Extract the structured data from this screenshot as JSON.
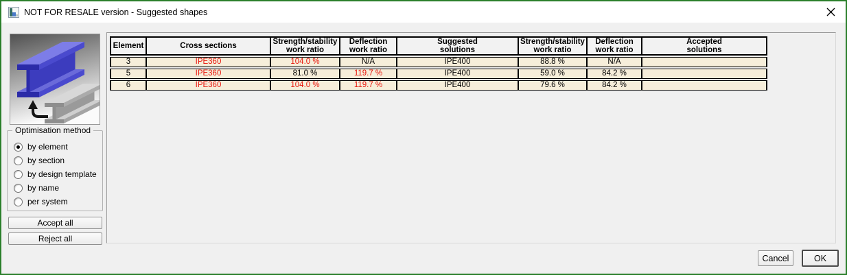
{
  "window": {
    "title": "NOT FOR RESALE version - Suggested shapes"
  },
  "colors": {
    "window_border": "#2b7f2b",
    "dialog_background": "#f0f0f0",
    "row_background": "#f6eeda",
    "alert_red": "#e81309"
  },
  "optimisation": {
    "group_label": "Optimisation method",
    "options": [
      {
        "label": "by element",
        "selected": true
      },
      {
        "label": "by section",
        "selected": false
      },
      {
        "label": "by design template",
        "selected": false
      },
      {
        "label": "by name",
        "selected": false
      },
      {
        "label": "per system",
        "selected": false
      }
    ]
  },
  "actions": {
    "accept_all": "Accept all",
    "reject_all": "Reject all",
    "cancel": "Cancel",
    "ok": "OK"
  },
  "table": {
    "columns": [
      {
        "label": "Element"
      },
      {
        "label": "Cross sections"
      },
      {
        "label": "Strength/stability\nwork ratio"
      },
      {
        "label": "Deflection\nwork ratio"
      },
      {
        "label": "Suggested\nsolutions"
      },
      {
        "label": "Strength/stability\nwork ratio"
      },
      {
        "label": "Deflection\nwork ratio"
      },
      {
        "label": "Accepted\nsolutions"
      }
    ],
    "rows": [
      {
        "cells": [
          {
            "t": "3"
          },
          {
            "t": "IPE360",
            "red": true
          },
          {
            "t": "104.0 %",
            "red": true
          },
          {
            "t": "N/A"
          },
          {
            "t": "IPE400"
          },
          {
            "t": "88.8 %"
          },
          {
            "t": "N/A"
          },
          {
            "t": ""
          }
        ]
      },
      {
        "cells": [
          {
            "t": "5"
          },
          {
            "t": "IPE360",
            "red": true
          },
          {
            "t": "81.0 %"
          },
          {
            "t": "119.7 %",
            "red": true
          },
          {
            "t": "IPE400"
          },
          {
            "t": "59.0 %"
          },
          {
            "t": "84.2 %"
          },
          {
            "t": ""
          }
        ]
      },
      {
        "cells": [
          {
            "t": "6"
          },
          {
            "t": "IPE360",
            "red": true
          },
          {
            "t": "104.0 %",
            "red": true
          },
          {
            "t": "119.7 %",
            "red": true
          },
          {
            "t": "IPE400"
          },
          {
            "t": "79.6 %"
          },
          {
            "t": "84.2 %"
          },
          {
            "t": ""
          }
        ]
      }
    ]
  }
}
